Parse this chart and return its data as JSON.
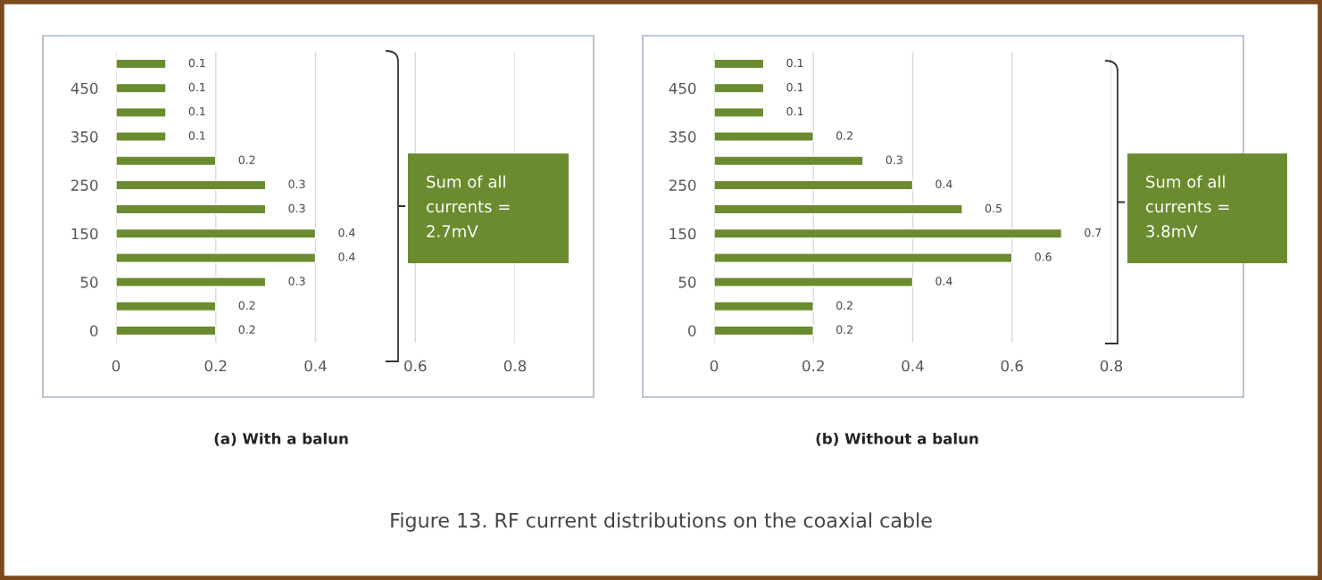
{
  "chart_data": [
    {
      "type": "bar",
      "orientation": "horizontal",
      "title": "(a) With a balun",
      "categories": [
        null,
        "450",
        null,
        "350",
        null,
        "250",
        null,
        "150",
        null,
        "50",
        null,
        "0"
      ],
      "values": [
        0.1,
        0.1,
        0.1,
        0.1,
        0.2,
        0.3,
        0.3,
        0.4,
        0.4,
        0.3,
        0.2,
        0.2
      ],
      "color": "#6b8b2f",
      "data_labels": true,
      "xlim": [
        0,
        0.8
      ],
      "xticks": [
        0,
        0.2,
        0.4,
        0.6,
        0.8
      ],
      "grid": "x",
      "annotations": [
        "Sum of all\ncurrents =\n2.7mV",
        "Figure 13. RF current distributions on the coaxial cable"
      ]
    },
    {
      "type": "bar",
      "orientation": "horizontal",
      "title": "(b) Without a balun",
      "categories": [
        null,
        "450",
        null,
        "350",
        null,
        "250",
        null,
        "150",
        null,
        "50",
        null,
        "0"
      ],
      "values": [
        0.1,
        0.1,
        0.1,
        0.2,
        0.3,
        0.4,
        0.5,
        0.7,
        0.6,
        0.4,
        0.2,
        0.2
      ],
      "color": "#6b8b2f",
      "data_labels": true,
      "xlim": [
        0,
        0.8
      ],
      "xticks": [
        0,
        0.2,
        0.4,
        0.6,
        0.8
      ],
      "grid": "x",
      "annotations": [
        "Sum of all\ncurrents =\n3.8mV"
      ]
    }
  ]
}
